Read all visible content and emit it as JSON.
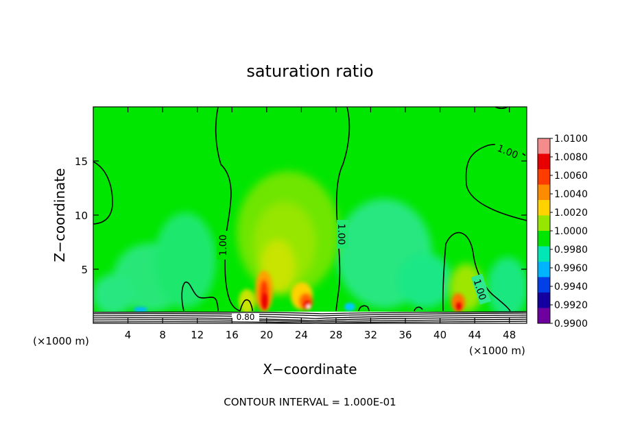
{
  "chart_data": {
    "type": "heatmap",
    "title": "saturation ratio",
    "xlabel": "X−coordinate",
    "ylabel": "Z−coordinate",
    "x_unit_left": "(×1000 m)",
    "x_unit_right": "(×1000 m)",
    "xlim": [
      0,
      50
    ],
    "ylim": [
      0,
      20
    ],
    "x_ticks": [
      4,
      8,
      12,
      16,
      20,
      24,
      28,
      32,
      36,
      40,
      44,
      48
    ],
    "y_ticks": [
      5,
      10,
      15
    ],
    "colorbar": {
      "labels": [
        "1.0100",
        "1.0080",
        "1.0060",
        "1.0040",
        "1.0020",
        "1.0000",
        "0.9980",
        "0.9960",
        "0.9940",
        "0.9920",
        "0.9900"
      ],
      "colors": [
        "#f48c8c",
        "#e80000",
        "#ff3c00",
        "#ff8c00",
        "#ffd200",
        "#96e600",
        "#00e600",
        "#00e6b4",
        "#00b4ff",
        "#0040e6",
        "#1400a0",
        "#6e00a0"
      ]
    },
    "background_color": "#00e600",
    "contour_label": "1.00",
    "bottom_contour_label": "0.80",
    "footer": "CONTOUR INTERVAL = 1.000E-01"
  }
}
